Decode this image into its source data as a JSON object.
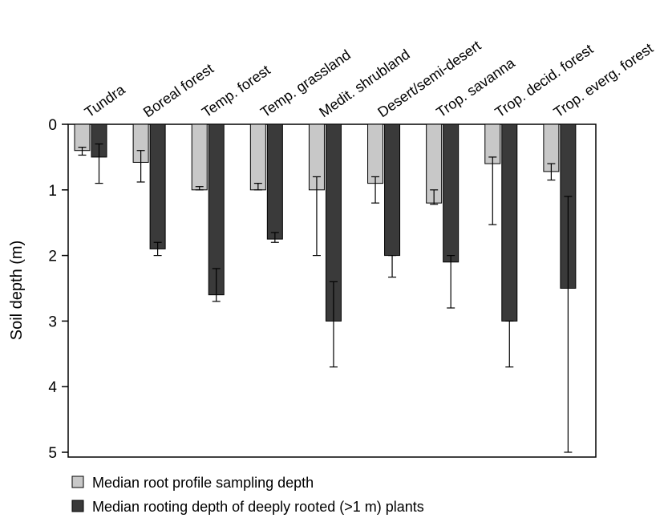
{
  "chart_data": {
    "type": "bar",
    "ylabel": "Soil depth (m)",
    "xlabel": "",
    "title": "",
    "y_axis_inverted": true,
    "ylim": [
      0,
      5.1
    ],
    "yticks": [
      0,
      1,
      2,
      3,
      4,
      5
    ],
    "categories": [
      "Tundra",
      "Boreal forest",
      "Temp. forest",
      "Temp. grassland",
      "Medit. shrubland",
      "Desert/semi-desert",
      "Trop. savanna",
      "Trop. decid. forest",
      "Trop. everg. forest"
    ],
    "series": [
      {
        "name": "Median root profile sampling depth",
        "color": "#c8c8c8",
        "values": [
          0.4,
          0.58,
          1.0,
          1.0,
          1.0,
          0.9,
          1.2,
          0.6,
          0.72
        ],
        "error_low": [
          0.35,
          0.4,
          0.95,
          0.9,
          0.8,
          0.8,
          1.0,
          0.5,
          0.6
        ],
        "error_high": [
          0.47,
          0.88,
          1.0,
          1.0,
          2.0,
          1.2,
          1.22,
          1.53,
          0.85
        ]
      },
      {
        "name": "Median rooting depth of deeply rooted (>1 m) plants",
        "color": "#3a3a3a",
        "values": [
          0.5,
          1.9,
          2.6,
          1.75,
          3.0,
          2.0,
          2.1,
          3.0,
          2.5
        ],
        "error_low": [
          0.3,
          1.8,
          2.2,
          1.65,
          2.4,
          2.0,
          2.0,
          3.0,
          1.1
        ],
        "error_high": [
          0.9,
          2.0,
          2.7,
          1.8,
          3.7,
          2.33,
          2.8,
          3.7,
          5.0
        ]
      }
    ],
    "legend_position": "bottom-left"
  }
}
